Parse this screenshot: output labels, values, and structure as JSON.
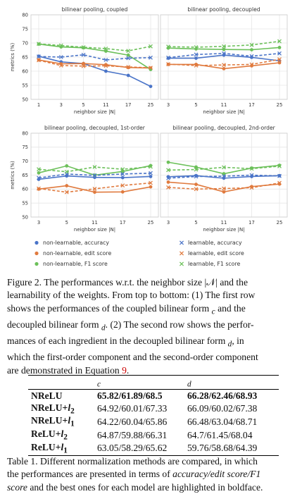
{
  "chart_data": [
    {
      "type": "line",
      "title": "bilinear pooling, coupled",
      "xlabel": "neighbor size |N|",
      "ylabel": "metrics (%)",
      "categories": [
        "1",
        "3",
        "5",
        "11",
        "17",
        "25"
      ],
      "ylim": [
        50,
        80
      ],
      "yticks": [
        50,
        55,
        60,
        65,
        70,
        75,
        80
      ],
      "grid": true,
      "series": [
        {
          "name": "non-learnable, accuracy",
          "values": [
            65.3,
            63.3,
            62.7,
            60.0,
            58.5,
            54.6
          ]
        },
        {
          "name": "non-learnable, edit score",
          "values": [
            64.0,
            62.6,
            62.7,
            62.3,
            61.3,
            61.1
          ]
        },
        {
          "name": "non-learnable, F1 score",
          "values": [
            69.6,
            68.6,
            68.3,
            67.1,
            65.7,
            60.6
          ]
        },
        {
          "name": "learnable, accuracy",
          "values": [
            65.2,
            65.0,
            65.8,
            64.0,
            64.6,
            64.8
          ]
        },
        {
          "name": "learnable, edit score",
          "values": [
            63.9,
            62.0,
            61.8,
            61.9,
            61.5,
            61.2
          ]
        },
        {
          "name": "learnable, F1 score",
          "values": [
            69.7,
            69.1,
            68.5,
            68.0,
            67.2,
            68.8
          ]
        }
      ]
    },
    {
      "type": "line",
      "title": "bilinear pooling, decoupled",
      "xlabel": "neighbor size |N|",
      "ylabel": "",
      "categories": [
        "3",
        "5",
        "11",
        "17",
        "25"
      ],
      "ylim": [
        50,
        80
      ],
      "grid": true,
      "series": [
        {
          "name": "non-learnable, accuracy",
          "values": [
            64.6,
            64.6,
            65.7,
            64.9,
            63.7
          ]
        },
        {
          "name": "non-learnable, edit score",
          "values": [
            62.4,
            62.4,
            60.9,
            61.9,
            63.0
          ]
        },
        {
          "name": "non-learnable, F1 score",
          "values": [
            68.2,
            67.9,
            67.7,
            67.6,
            68.4
          ]
        },
        {
          "name": "learnable, accuracy",
          "values": [
            64.8,
            65.9,
            66.3,
            65.3,
            66.3
          ]
        },
        {
          "name": "learnable, edit score",
          "values": [
            62.5,
            62.0,
            62.2,
            62.4,
            64.2
          ]
        },
        {
          "name": "learnable, F1 score",
          "values": [
            68.7,
            68.5,
            68.8,
            69.3,
            70.6
          ]
        }
      ]
    },
    {
      "type": "line",
      "title": "bilinear pooling, decoupled, 1st-order",
      "xlabel": "neighbor size |N|",
      "ylabel": "metrics (%)",
      "categories": [
        "3",
        "5",
        "11",
        "17",
        "25"
      ],
      "ylim": [
        50,
        80
      ],
      "yticks": [
        50,
        55,
        60,
        65,
        70,
        75,
        80
      ],
      "grid": true,
      "series": [
        {
          "name": "non-learnable, accuracy",
          "values": [
            63.5,
            64.7,
            64.2,
            64.1,
            64.5
          ]
        },
        {
          "name": "non-learnable, edit score",
          "values": [
            60.0,
            61.2,
            58.9,
            59.0,
            60.8
          ]
        },
        {
          "name": "non-learnable, F1 score",
          "values": [
            65.8,
            68.3,
            65.0,
            66.3,
            68.4
          ]
        },
        {
          "name": "learnable, accuracy",
          "values": [
            64.0,
            65.4,
            64.9,
            65.4,
            65.7
          ]
        },
        {
          "name": "learnable, edit score",
          "values": [
            60.2,
            58.9,
            60.1,
            61.3,
            62.2
          ]
        },
        {
          "name": "learnable, F1 score",
          "values": [
            67.1,
            66.2,
            67.9,
            67.1,
            68.0
          ]
        }
      ]
    },
    {
      "type": "line",
      "title": "bilinear pooling, decoupled, 2nd-order",
      "xlabel": "neighbor size |N|",
      "ylabel": "",
      "categories": [
        "3",
        "5",
        "11",
        "17",
        "25"
      ],
      "ylim": [
        50,
        80
      ],
      "grid": true,
      "series": [
        {
          "name": "non-learnable, accuracy",
          "values": [
            64.4,
            64.8,
            63.9,
            64.5,
            64.8
          ]
        },
        {
          "name": "non-learnable, edit score",
          "values": [
            62.5,
            61.7,
            59.0,
            60.9,
            61.8
          ]
        },
        {
          "name": "non-learnable, F1 score",
          "values": [
            69.6,
            67.9,
            65.5,
            67.5,
            68.5
          ]
        },
        {
          "name": "learnable, accuracy",
          "values": [
            63.9,
            64.5,
            64.6,
            65.0,
            64.7
          ]
        },
        {
          "name": "learnable, edit score",
          "values": [
            60.6,
            60.0,
            60.2,
            60.5,
            62.2
          ]
        },
        {
          "name": "learnable, F1 score",
          "values": [
            66.8,
            67.0,
            67.8,
            67.3,
            68.2
          ]
        }
      ]
    }
  ],
  "legend": [
    {
      "label": "non-learnable, accuracy",
      "marker": "dot",
      "color": "#4a74c8"
    },
    {
      "label": "learnable, accuracy",
      "marker": "x",
      "color": "#4a74c8"
    },
    {
      "label": "non-learnable, edit score",
      "marker": "dot",
      "color": "#e07a3e"
    },
    {
      "label": "learnable, edit score",
      "marker": "x",
      "color": "#e07a3e"
    },
    {
      "label": "non-learnable, F1 score",
      "marker": "dot",
      "color": "#6cc05a"
    },
    {
      "label": "learnable, F1 score",
      "marker": "x",
      "color": "#6cc05a"
    }
  ],
  "colors": {
    "accuracy": "#4a74c8",
    "edit": "#e07a3e",
    "f1": "#6cc05a",
    "grid": "#e6e6e6",
    "reference": "#cc0000"
  },
  "figure_caption": {
    "label": "Figure 2.",
    "line1": "The performances w.r.t. the neighbor size |𝒩| and the",
    "line2": "learnability of the weights. From top to bottom: (1) The first row",
    "line3": "shows the performances of the coupled bilinear form 𝒨",
    "line3_sub": "c",
    "line3_tail": " and the",
    "line4": "decoupled bilinear form 𝒨",
    "line4_sub": "d",
    "line4_tail": ". (2) The second row shows the perfor-",
    "line5": "mances of each ingredient in the decoupled bilinear form 𝒨",
    "line5_sub": "d",
    "line5_tail": ", in",
    "line6": "which the first-order component and the second-order component",
    "line7": "are demonstrated in Equation ",
    "line7_ref": "9",
    "line7_tail": "."
  },
  "table": {
    "col_headers": [
      "𝒨c",
      "𝒨d"
    ],
    "col_header_base": [
      "𝒨",
      "𝒨"
    ],
    "col_header_sub": [
      "c",
      "d"
    ],
    "rows": [
      {
        "label_base": "NReLU",
        "label_sub": "",
        "label_plus": "",
        "c": "65.82/61.89/68.5",
        "d": "66.28/62.46/68.93",
        "bold": true
      },
      {
        "label_base": "NReLU+",
        "label_sub": "2",
        "label_plus": "l",
        "c": "64.92/60.01/67.33",
        "d": "66.09/60.02/67.38",
        "bold": false
      },
      {
        "label_base": "NReLU+",
        "label_sub": "1",
        "label_plus": "l",
        "c": "64.22/60.04/65.86",
        "d": "66.48/63.04/68.71",
        "bold": false
      },
      {
        "label_base": "ReLU+",
        "label_sub": "2",
        "label_plus": "l",
        "c": "64.87/59.88/66.31",
        "d": "64.7/61.45/68.04",
        "bold": false
      },
      {
        "label_base": "ReLU+",
        "label_sub": "1",
        "label_plus": "l",
        "c": "63.05/58.29/65.62",
        "d": "59.76/58.68/64.39",
        "bold": false
      }
    ]
  },
  "table_caption": {
    "label": "Table 1.",
    "line1": " Different normalization methods are compared, in which",
    "line2_pre": "the performances are presented in terms of ",
    "line2_ital": "accuracy/edit score/F1",
    "line3_ital": "score",
    "line3_tail": " and the best ones for each model are highlighted in boldface."
  }
}
